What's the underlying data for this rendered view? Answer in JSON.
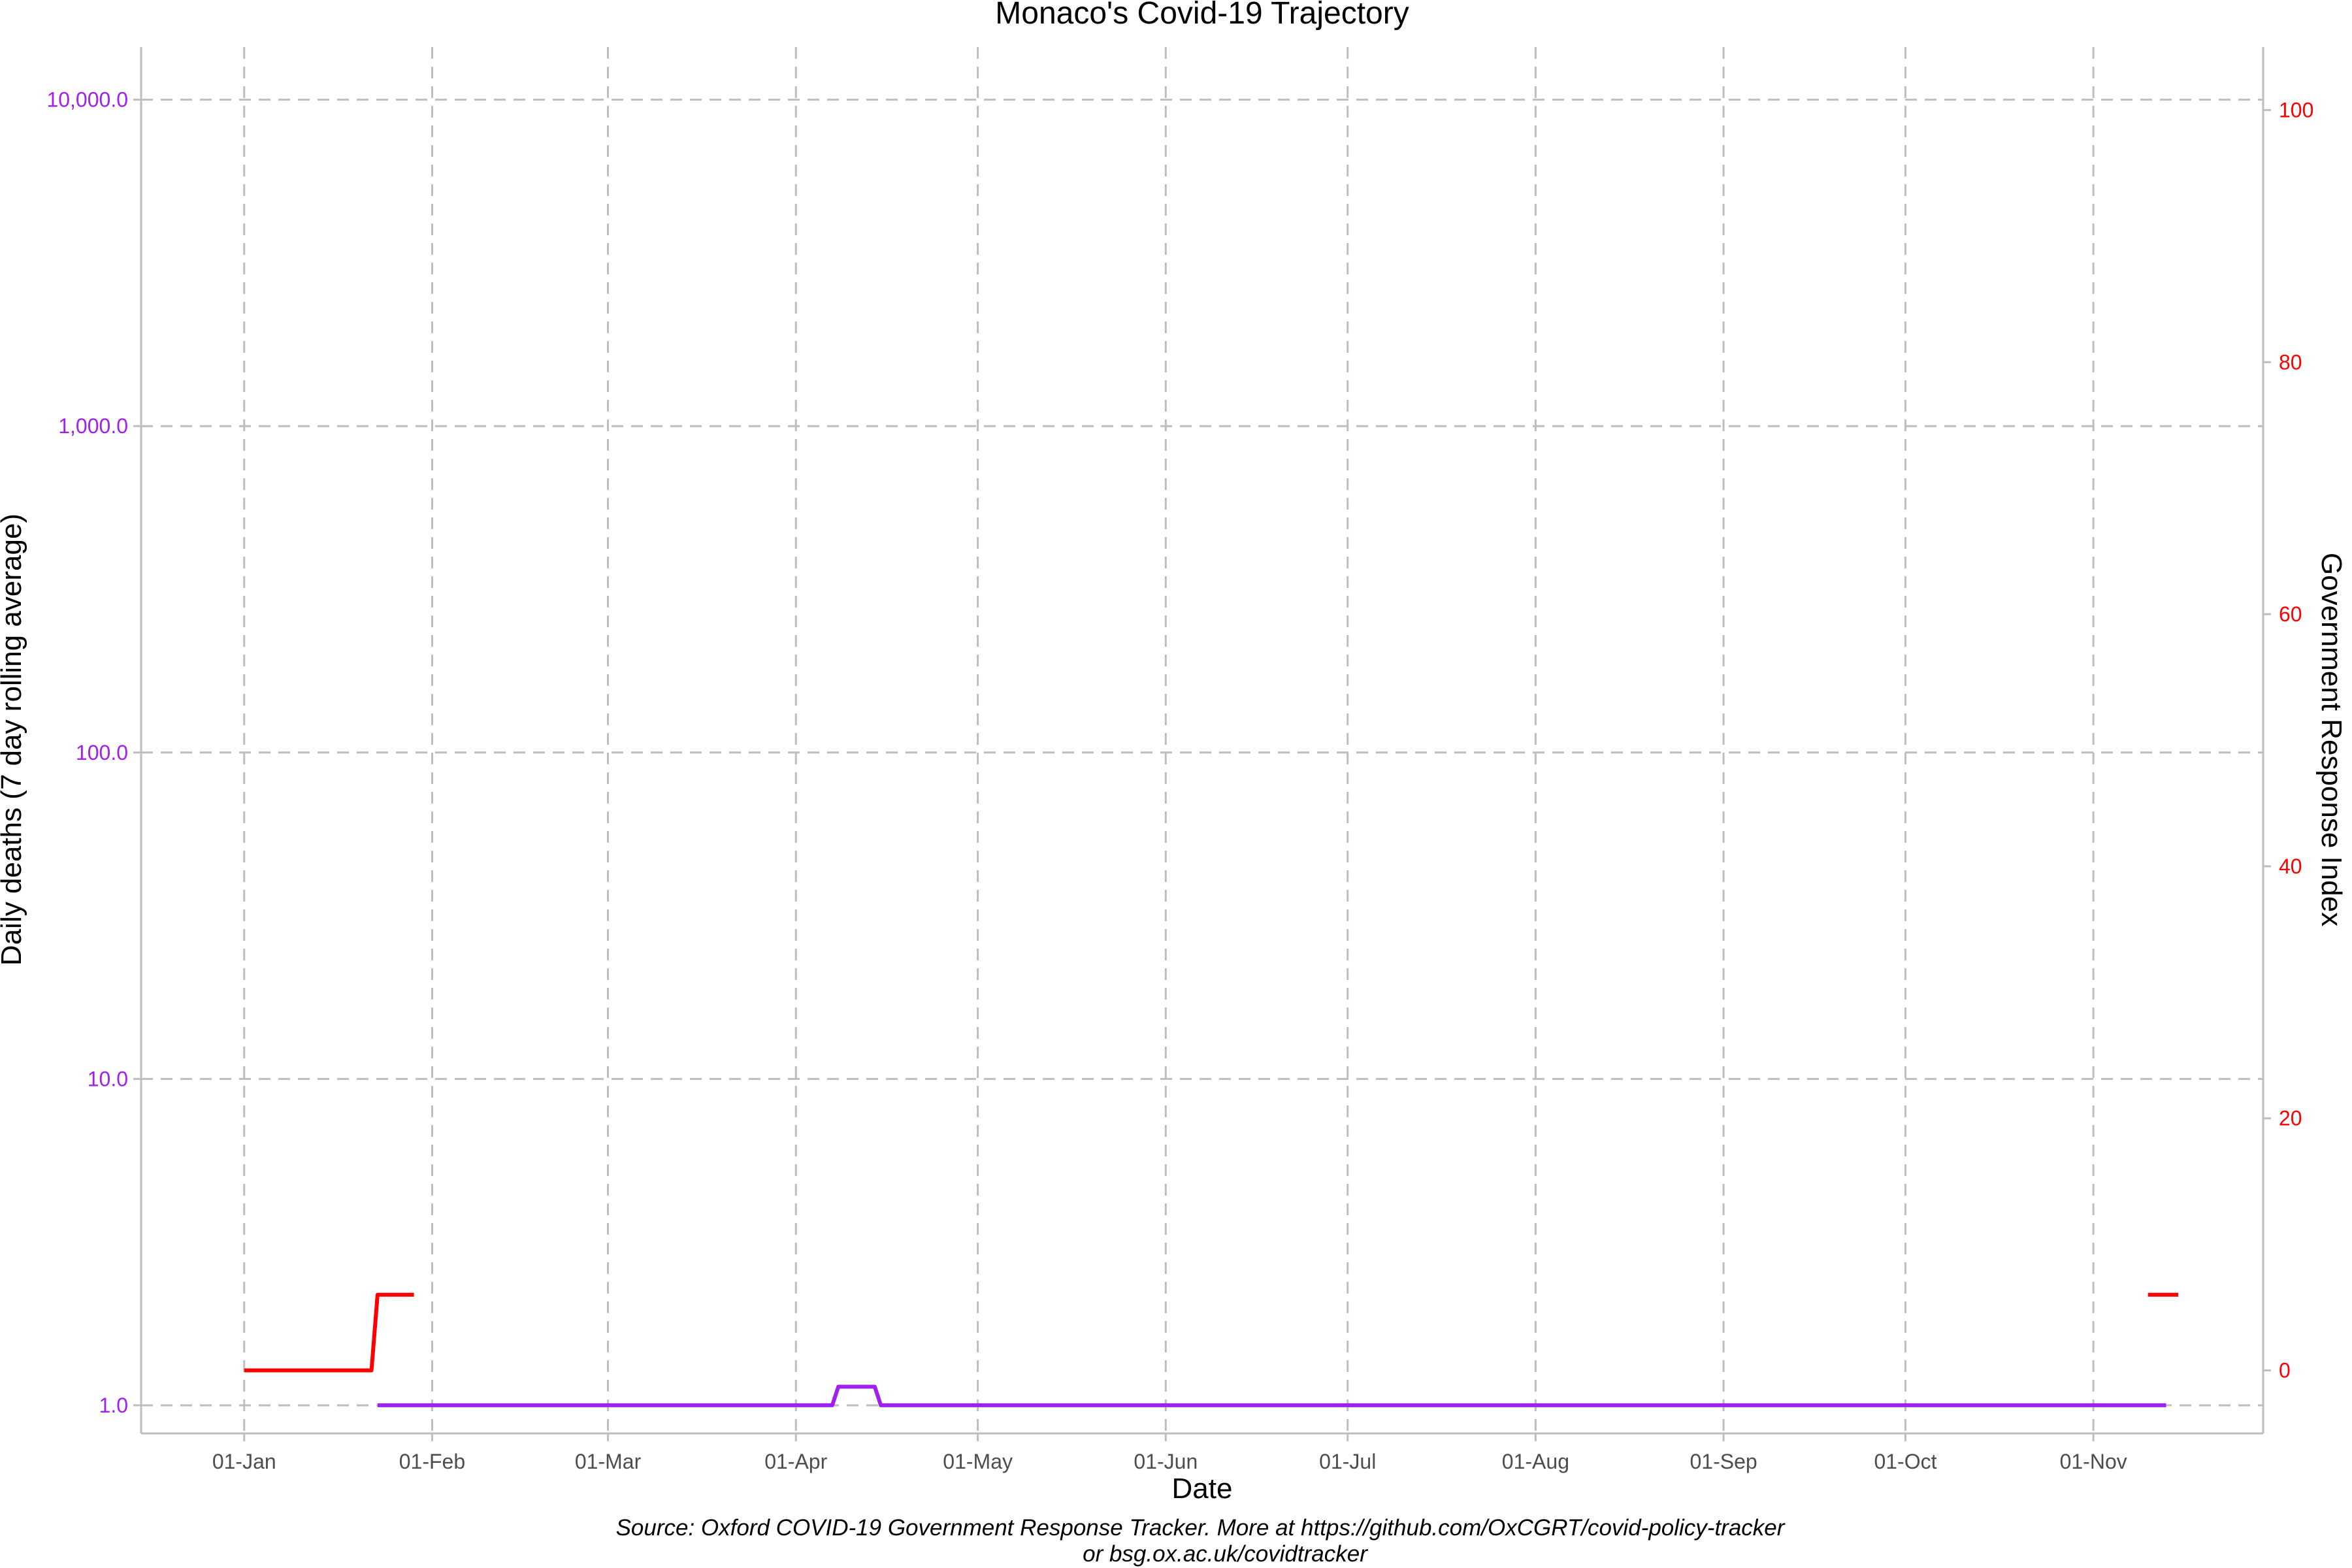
{
  "chart_data": {
    "type": "line",
    "title": "Monaco's Covid-19 Trajectory",
    "xlabel": "Date",
    "ylabel_left": "Daily deaths (7 day rolling average)",
    "ylabel_right": "Government Response Index",
    "caption_line1": "Source: Oxford COVID-19 Government Response Tracker. More at https://github.com/OxCGRT/covid-policy-tracker",
    "caption_line2": "or bsg.ox.ac.uk/covidtracker",
    "x_tick_labels": [
      "01-Jan",
      "01-Feb",
      "01-Mar",
      "01-Apr",
      "01-May",
      "01-Jun",
      "01-Jul",
      "01-Aug",
      "01-Sep",
      "01-Oct",
      "01-Nov"
    ],
    "x_tick_dates": [
      "2020-01-01",
      "2020-02-01",
      "2020-03-01",
      "2020-04-01",
      "2020-05-01",
      "2020-06-01",
      "2020-07-01",
      "2020-08-01",
      "2020-09-01",
      "2020-10-01",
      "2020-11-01"
    ],
    "xlim": [
      "2019-12-15",
      "2020-11-29"
    ],
    "y_left": {
      "scale": "log10",
      "ticks": [
        1,
        10,
        100,
        1000,
        10000
      ],
      "tick_labels": [
        "1.0",
        "10.0",
        "100.0",
        "1,000.0",
        "10,000.0"
      ],
      "ylim": [
        0.82,
        14500
      ],
      "color": "#a020f0"
    },
    "y_right": {
      "scale": "linear",
      "ticks": [
        0,
        20,
        40,
        60,
        80,
        100
      ],
      "tick_labels": [
        "0",
        "20",
        "40",
        "60",
        "80",
        "100"
      ],
      "ylim": [
        -5,
        105
      ],
      "color": "#ff0000"
    },
    "grid": true,
    "series": [
      {
        "name": "Daily deaths (7 day rolling average)",
        "axis": "left",
        "color": "#a020f0",
        "points": [
          {
            "date": "2020-01-23",
            "value": 1.0
          },
          {
            "date": "2020-04-07",
            "value": 1.0
          },
          {
            "date": "2020-04-08",
            "value": 1.14
          },
          {
            "date": "2020-04-14",
            "value": 1.14
          },
          {
            "date": "2020-04-15",
            "value": 1.0
          },
          {
            "date": "2020-11-13",
            "value": 1.0
          }
        ]
      },
      {
        "name": "Government Response Index",
        "axis": "right",
        "color": "#ff0000",
        "segments": [
          [
            {
              "date": "2020-01-01",
              "value": 0
            },
            {
              "date": "2020-01-22",
              "value": 0
            },
            {
              "date": "2020-01-23",
              "value": 6
            },
            {
              "date": "2020-01-29",
              "value": 6
            }
          ],
          [
            {
              "date": "2020-11-10",
              "value": 6
            },
            {
              "date": "2020-11-15",
              "value": 6
            }
          ]
        ]
      }
    ]
  }
}
